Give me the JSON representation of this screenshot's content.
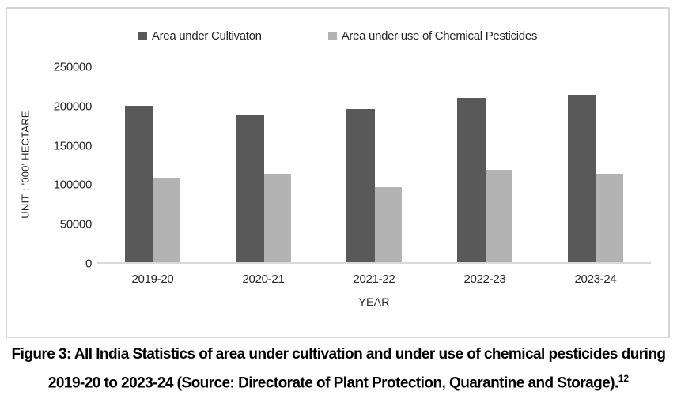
{
  "figure": {
    "caption_line1": "Figure 3: All India Statistics of area under cultivation and under use of chemical pesticides during",
    "caption_line2": "2019-20 to 2023-24 (Source: Directorate of Plant Protection, Quarantine and Storage).",
    "caption_footnote_marker": "12"
  },
  "chart_data": {
    "type": "bar",
    "categories": [
      "2019-20",
      "2020-21",
      "2021-22",
      "2022-23",
      "2023-24"
    ],
    "series": [
      {
        "name": "Area under Cultivaton",
        "color": "#595959",
        "values": [
          199000,
          188000,
          195000,
          209000,
          213000
        ]
      },
      {
        "name": "Area under use of Chemical Pesticides",
        "color": "#b3b3b3",
        "values": [
          107000,
          112000,
          95000,
          118000,
          113000
        ]
      }
    ],
    "title": "",
    "xlabel": "YEAR",
    "ylabel": "UNIT : '000' HECTARE",
    "ylim": [
      0,
      250000
    ],
    "yticks": [
      0,
      50000,
      100000,
      150000,
      200000,
      250000
    ],
    "ytick_labels": [
      "0",
      "50000",
      "100000",
      "150000",
      "200000",
      "250000"
    ],
    "grid": false,
    "legend_position": "top"
  },
  "colors": {
    "chart_border": "#d6d6d6",
    "axis_line": "#d9d9d9",
    "text": "#262626"
  }
}
